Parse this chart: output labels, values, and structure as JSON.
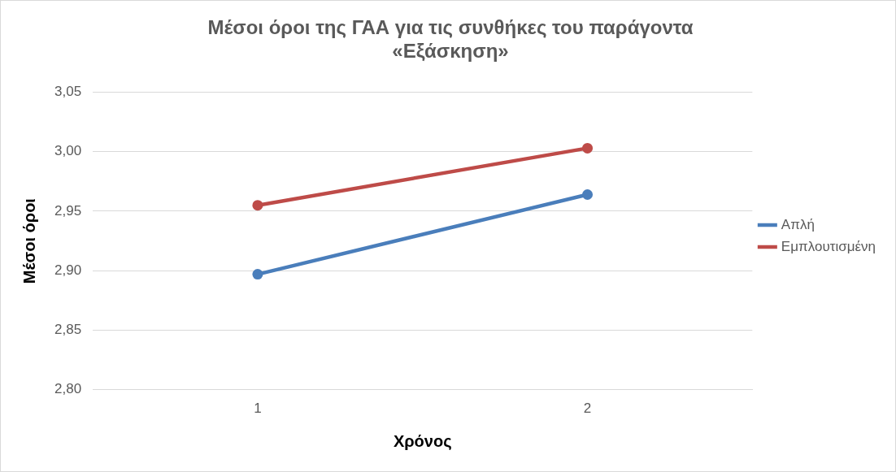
{
  "chart_data": {
    "type": "line",
    "title": "Μέσοι όροι της ΓΑΑ για τις συνθήκες του παράγοντα «Εξάσκηση»",
    "xlabel": "Χρόνος",
    "ylabel": "Μέσοι όροι",
    "categories": [
      "1",
      "2"
    ],
    "series": [
      {
        "name": "Απλή",
        "color": "#4a7ebb",
        "values": [
          2.897,
          2.964
        ]
      },
      {
        "name": "Εμπλουτισμένη",
        "color": "#be4b48",
        "values": [
          2.955,
          3.003
        ]
      }
    ],
    "ylim": [
      2.8,
      3.05
    ],
    "yticks": [
      {
        "value": 2.8,
        "label": "2,80"
      },
      {
        "value": 2.85,
        "label": "2,85"
      },
      {
        "value": 2.9,
        "label": "2,90"
      },
      {
        "value": 2.95,
        "label": "2,95"
      },
      {
        "value": 3.0,
        "label": "3,00"
      },
      {
        "value": 3.05,
        "label": "3,05"
      }
    ],
    "grid": "y",
    "legend": "right",
    "marker": "circle",
    "line_style": "solid"
  }
}
